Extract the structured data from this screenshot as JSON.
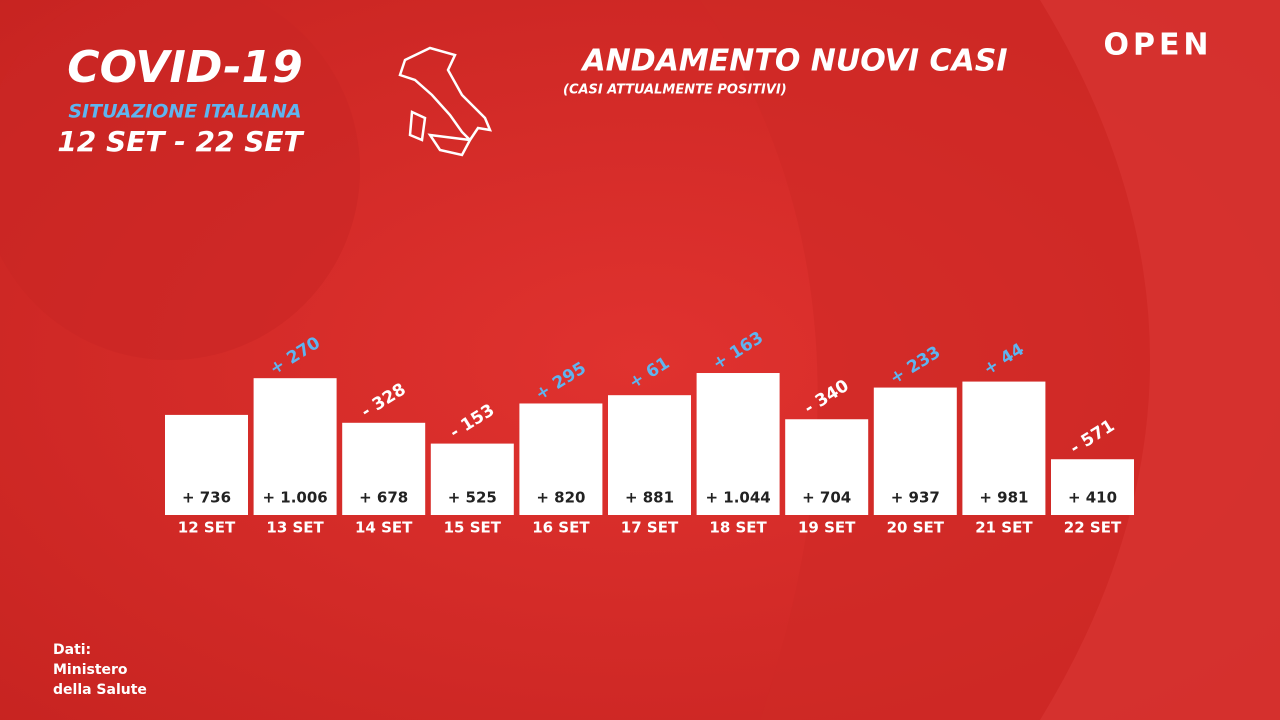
{
  "chart_data": {
    "type": "bar",
    "title": "ANDAMENTO NUOVI CASI",
    "subtitle": "(CASI ATTUALMENTE POSITIVI)",
    "header": {
      "title": "COVID-19",
      "subtitle": "SITUAZIONE ITALIANA",
      "period": "12 SET - 22 SET"
    },
    "brand": "OPEN",
    "source": [
      "Dati:",
      "Ministero",
      "della Salute"
    ],
    "categories": [
      "12 SET",
      "13 SET",
      "14 SET",
      "15 SET",
      "16 SET",
      "17 SET",
      "18 SET",
      "19 SET",
      "20 SET",
      "21 SET",
      "22 SET"
    ],
    "values": [
      736,
      1006,
      678,
      525,
      820,
      881,
      1044,
      704,
      937,
      981,
      410
    ],
    "value_labels": [
      "+ 736",
      "+ 1.006",
      "+ 678",
      "+ 525",
      "+ 820",
      "+ 881",
      "+ 1.044",
      "+ 704",
      "+ 937",
      "+ 981",
      "+ 410"
    ],
    "change_values": [
      null,
      270,
      -328,
      -153,
      295,
      61,
      163,
      -340,
      233,
      44,
      -571
    ],
    "change_labels": [
      null,
      "+ 270",
      "- 328",
      "- 153",
      "+ 295",
      "+ 61",
      "+ 163",
      "- 340",
      "+ 233",
      "+ 44",
      "- 571"
    ],
    "color": "#ffffff",
    "positive_color": "#5fb4ef",
    "negative_color": "#ffffff"
  }
}
